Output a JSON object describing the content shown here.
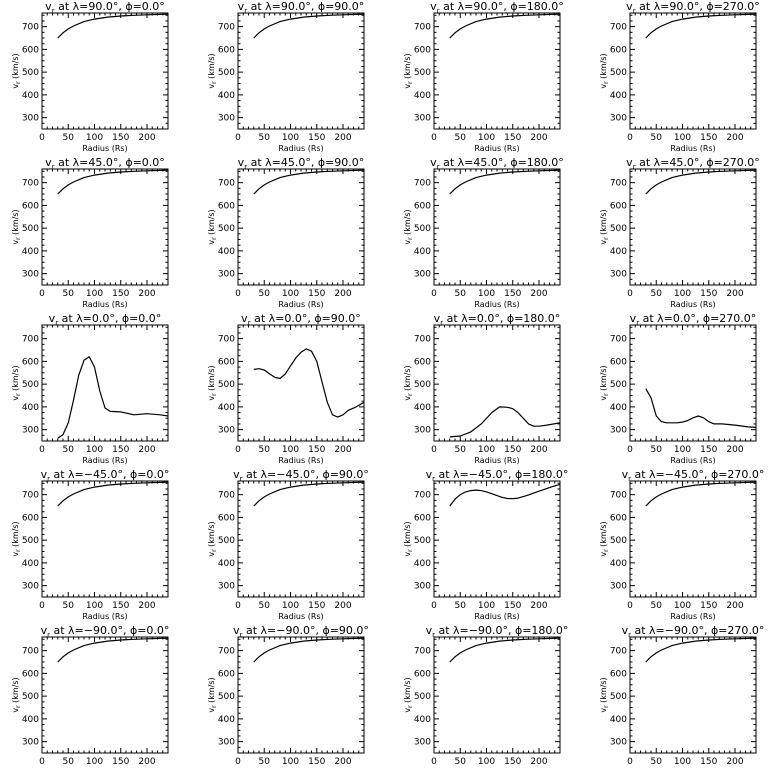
{
  "figure": {
    "panel_title_prefix": "v",
    "panel_title_subscript": "r",
    "panel_title_middle": " at λ=",
    "panel_title_phi": "°, ϕ=",
    "panel_title_deg": "°",
    "xlabel": "Radius (Rs)",
    "ylabel": "v",
    "ylabel_subscript": "r",
    "ylabel_unit": " (km/s)"
  },
  "chart_data": [
    {
      "type": "line",
      "lambda": "90.0",
      "phi": "0.0",
      "xlim": [
        0,
        240
      ],
      "ylim": [
        250,
        760
      ],
      "xticks": [
        0,
        50,
        100,
        150,
        200
      ],
      "yticks": [
        300,
        400,
        500,
        600,
        700
      ],
      "x": [
        30,
        40,
        50,
        60,
        80,
        100,
        125,
        150,
        175,
        200,
        240
      ],
      "series": [
        {
          "values": [
            650,
            673,
            690,
            703,
            722,
            733,
            742,
            747,
            750,
            752,
            755
          ]
        }
      ]
    },
    {
      "type": "line",
      "lambda": "90.0",
      "phi": "90.0",
      "xlim": [
        0,
        240
      ],
      "ylim": [
        250,
        760
      ],
      "xticks": [
        0,
        50,
        100,
        150,
        200
      ],
      "yticks": [
        300,
        400,
        500,
        600,
        700
      ],
      "x": [
        30,
        40,
        50,
        60,
        80,
        100,
        125,
        150,
        175,
        200,
        240
      ],
      "series": [
        {
          "values": [
            650,
            673,
            690,
            703,
            722,
            733,
            742,
            747,
            750,
            752,
            755
          ]
        }
      ]
    },
    {
      "type": "line",
      "lambda": "90.0",
      "phi": "180.0",
      "xlim": [
        0,
        240
      ],
      "ylim": [
        250,
        760
      ],
      "xticks": [
        0,
        50,
        100,
        150,
        200
      ],
      "yticks": [
        300,
        400,
        500,
        600,
        700
      ],
      "x": [
        30,
        40,
        50,
        60,
        80,
        100,
        125,
        150,
        175,
        200,
        240
      ],
      "series": [
        {
          "values": [
            650,
            673,
            690,
            703,
            722,
            733,
            742,
            747,
            750,
            752,
            755
          ]
        }
      ]
    },
    {
      "type": "line",
      "lambda": "90.0",
      "phi": "270.0",
      "xlim": [
        0,
        240
      ],
      "ylim": [
        250,
        760
      ],
      "xticks": [
        0,
        50,
        100,
        150,
        200
      ],
      "yticks": [
        300,
        400,
        500,
        600,
        700
      ],
      "x": [
        30,
        40,
        50,
        60,
        80,
        100,
        125,
        150,
        175,
        200,
        240
      ],
      "series": [
        {
          "values": [
            650,
            673,
            690,
            703,
            722,
            733,
            742,
            747,
            750,
            752,
            755
          ]
        }
      ]
    },
    {
      "type": "line",
      "lambda": "45.0",
      "phi": "0.0",
      "xlim": [
        0,
        240
      ],
      "ylim": [
        250,
        760
      ],
      "xticks": [
        0,
        50,
        100,
        150,
        200
      ],
      "yticks": [
        300,
        400,
        500,
        600,
        700
      ],
      "x": [
        30,
        40,
        50,
        60,
        80,
        100,
        125,
        150,
        175,
        200,
        240
      ],
      "series": [
        {
          "values": [
            650,
            673,
            690,
            703,
            722,
            733,
            742,
            747,
            750,
            752,
            755
          ]
        }
      ]
    },
    {
      "type": "line",
      "lambda": "45.0",
      "phi": "90.0",
      "xlim": [
        0,
        240
      ],
      "ylim": [
        250,
        760
      ],
      "xticks": [
        0,
        50,
        100,
        150,
        200
      ],
      "yticks": [
        300,
        400,
        500,
        600,
        700
      ],
      "x": [
        30,
        40,
        50,
        60,
        80,
        100,
        125,
        150,
        175,
        200,
        240
      ],
      "series": [
        {
          "values": [
            650,
            673,
            690,
            703,
            722,
            733,
            742,
            747,
            750,
            752,
            755
          ]
        }
      ]
    },
    {
      "type": "line",
      "lambda": "45.0",
      "phi": "180.0",
      "xlim": [
        0,
        240
      ],
      "ylim": [
        250,
        760
      ],
      "xticks": [
        0,
        50,
        100,
        150,
        200
      ],
      "yticks": [
        300,
        400,
        500,
        600,
        700
      ],
      "x": [
        30,
        40,
        50,
        60,
        80,
        100,
        125,
        150,
        175,
        200,
        240
      ],
      "series": [
        {
          "values": [
            650,
            673,
            690,
            703,
            722,
            733,
            742,
            747,
            750,
            752,
            755
          ]
        }
      ]
    },
    {
      "type": "line",
      "lambda": "45.0",
      "phi": "270.0",
      "xlim": [
        0,
        240
      ],
      "ylim": [
        250,
        760
      ],
      "xticks": [
        0,
        50,
        100,
        150,
        200
      ],
      "yticks": [
        300,
        400,
        500,
        600,
        700
      ],
      "x": [
        30,
        40,
        50,
        60,
        80,
        100,
        125,
        150,
        175,
        200,
        240
      ],
      "series": [
        {
          "values": [
            650,
            673,
            690,
            703,
            722,
            733,
            742,
            747,
            750,
            752,
            755
          ]
        }
      ]
    },
    {
      "type": "line",
      "lambda": "0.0",
      "phi": "0.0",
      "xlim": [
        0,
        240
      ],
      "ylim": [
        250,
        760
      ],
      "xticks": [
        0,
        50,
        100,
        150,
        200
      ],
      "yticks": [
        300,
        400,
        500,
        600,
        700
      ],
      "x": [
        30,
        40,
        50,
        60,
        70,
        80,
        90,
        100,
        110,
        120,
        130,
        150,
        175,
        200,
        225,
        240
      ],
      "series": [
        {
          "values": [
            262,
            278,
            330,
            430,
            540,
            605,
            620,
            575,
            470,
            395,
            380,
            378,
            365,
            370,
            365,
            360
          ]
        }
      ]
    },
    {
      "type": "line",
      "lambda": "0.0",
      "phi": "90.0",
      "xlim": [
        0,
        240
      ],
      "ylim": [
        250,
        760
      ],
      "xticks": [
        0,
        50,
        100,
        150,
        200
      ],
      "yticks": [
        300,
        400,
        500,
        600,
        700
      ],
      "x": [
        30,
        40,
        50,
        60,
        70,
        80,
        90,
        100,
        110,
        120,
        130,
        140,
        150,
        160,
        170,
        180,
        190,
        200,
        210,
        225,
        240
      ],
      "series": [
        {
          "values": [
            565,
            568,
            562,
            545,
            530,
            525,
            545,
            580,
            615,
            640,
            655,
            645,
            600,
            510,
            420,
            365,
            355,
            365,
            385,
            400,
            420
          ]
        }
      ]
    },
    {
      "type": "line",
      "lambda": "0.0",
      "phi": "180.0",
      "xlim": [
        0,
        240
      ],
      "ylim": [
        250,
        760
      ],
      "xticks": [
        0,
        50,
        100,
        150,
        200
      ],
      "yticks": [
        300,
        400,
        500,
        600,
        700
      ],
      "x": [
        30,
        50,
        70,
        90,
        110,
        125,
        140,
        150,
        160,
        170,
        180,
        190,
        200,
        215,
        240
      ],
      "series": [
        {
          "values": [
            268,
            272,
            290,
            325,
            375,
            400,
            398,
            392,
            375,
            350,
            325,
            315,
            315,
            320,
            330
          ]
        }
      ]
    },
    {
      "type": "line",
      "lambda": "0.0",
      "phi": "270.0",
      "xlim": [
        0,
        240
      ],
      "ylim": [
        250,
        760
      ],
      "xticks": [
        0,
        50,
        100,
        150,
        200
      ],
      "yticks": [
        300,
        400,
        500,
        600,
        700
      ],
      "x": [
        30,
        40,
        50,
        60,
        70,
        80,
        90,
        100,
        110,
        120,
        130,
        140,
        150,
        160,
        175,
        200,
        225,
        240
      ],
      "series": [
        {
          "values": [
            480,
            440,
            360,
            335,
            330,
            330,
            330,
            333,
            340,
            352,
            360,
            352,
            335,
            325,
            325,
            320,
            312,
            310
          ]
        }
      ]
    },
    {
      "type": "line",
      "lambda": "−45.0",
      "phi": "0.0",
      "xlim": [
        0,
        240
      ],
      "ylim": [
        250,
        760
      ],
      "xticks": [
        0,
        50,
        100,
        150,
        200
      ],
      "yticks": [
        300,
        400,
        500,
        600,
        700
      ],
      "x": [
        30,
        40,
        50,
        60,
        80,
        100,
        125,
        150,
        175,
        200,
        240
      ],
      "series": [
        {
          "values": [
            650,
            673,
            690,
            703,
            722,
            733,
            742,
            747,
            750,
            752,
            755
          ]
        }
      ]
    },
    {
      "type": "line",
      "lambda": "−45.0",
      "phi": "90.0",
      "xlim": [
        0,
        240
      ],
      "ylim": [
        250,
        760
      ],
      "xticks": [
        0,
        50,
        100,
        150,
        200
      ],
      "yticks": [
        300,
        400,
        500,
        600,
        700
      ],
      "x": [
        30,
        40,
        50,
        60,
        80,
        100,
        125,
        150,
        175,
        200,
        240
      ],
      "series": [
        {
          "values": [
            650,
            673,
            690,
            703,
            722,
            733,
            742,
            747,
            750,
            752,
            755
          ]
        }
      ]
    },
    {
      "type": "line",
      "lambda": "−45.0",
      "phi": "180.0",
      "xlim": [
        0,
        240
      ],
      "ylim": [
        250,
        760
      ],
      "xticks": [
        0,
        50,
        100,
        150,
        200
      ],
      "yticks": [
        300,
        400,
        500,
        600,
        700
      ],
      "x": [
        30,
        40,
        50,
        60,
        70,
        80,
        90,
        100,
        110,
        120,
        130,
        140,
        150,
        160,
        175,
        200,
        225,
        240
      ],
      "series": [
        {
          "values": [
            650,
            680,
            700,
            712,
            718,
            720,
            718,
            712,
            704,
            696,
            688,
            683,
            682,
            685,
            695,
            715,
            735,
            745
          ]
        }
      ]
    },
    {
      "type": "line",
      "lambda": "−45.0",
      "phi": "270.0",
      "xlim": [
        0,
        240
      ],
      "ylim": [
        250,
        760
      ],
      "xticks": [
        0,
        50,
        100,
        150,
        200
      ],
      "yticks": [
        300,
        400,
        500,
        600,
        700
      ],
      "x": [
        30,
        40,
        50,
        60,
        80,
        100,
        125,
        150,
        175,
        200,
        240
      ],
      "series": [
        {
          "values": [
            650,
            673,
            690,
            703,
            722,
            733,
            742,
            747,
            750,
            752,
            755
          ]
        }
      ]
    },
    {
      "type": "line",
      "lambda": "−90.0",
      "phi": "0.0",
      "xlim": [
        0,
        240
      ],
      "ylim": [
        250,
        760
      ],
      "xticks": [
        0,
        50,
        100,
        150,
        200
      ],
      "yticks": [
        300,
        400,
        500,
        600,
        700
      ],
      "x": [
        30,
        40,
        50,
        60,
        80,
        100,
        125,
        150,
        175,
        200,
        240
      ],
      "series": [
        {
          "values": [
            650,
            673,
            690,
            703,
            722,
            733,
            742,
            747,
            750,
            752,
            755
          ]
        }
      ]
    },
    {
      "type": "line",
      "lambda": "−90.0",
      "phi": "90.0",
      "xlim": [
        0,
        240
      ],
      "ylim": [
        250,
        760
      ],
      "xticks": [
        0,
        50,
        100,
        150,
        200
      ],
      "yticks": [
        300,
        400,
        500,
        600,
        700
      ],
      "x": [
        30,
        40,
        50,
        60,
        80,
        100,
        125,
        150,
        175,
        200,
        240
      ],
      "series": [
        {
          "values": [
            650,
            673,
            690,
            703,
            722,
            733,
            742,
            747,
            750,
            752,
            755
          ]
        }
      ]
    },
    {
      "type": "line",
      "lambda": "−90.0",
      "phi": "180.0",
      "xlim": [
        0,
        240
      ],
      "ylim": [
        250,
        760
      ],
      "xticks": [
        0,
        50,
        100,
        150,
        200
      ],
      "yticks": [
        300,
        400,
        500,
        600,
        700
      ],
      "x": [
        30,
        40,
        50,
        60,
        80,
        100,
        125,
        150,
        175,
        200,
        240
      ],
      "series": [
        {
          "values": [
            650,
            673,
            690,
            703,
            722,
            733,
            742,
            747,
            750,
            752,
            755
          ]
        }
      ]
    },
    {
      "type": "line",
      "lambda": "−90.0",
      "phi": "270.0",
      "xlim": [
        0,
        240
      ],
      "ylim": [
        250,
        760
      ],
      "xticks": [
        0,
        50,
        100,
        150,
        200
      ],
      "yticks": [
        300,
        400,
        500,
        600,
        700
      ],
      "x": [
        30,
        40,
        50,
        60,
        80,
        100,
        125,
        150,
        175,
        200,
        240
      ],
      "series": [
        {
          "values": [
            650,
            673,
            690,
            703,
            722,
            733,
            742,
            747,
            750,
            752,
            755
          ]
        }
      ]
    }
  ]
}
